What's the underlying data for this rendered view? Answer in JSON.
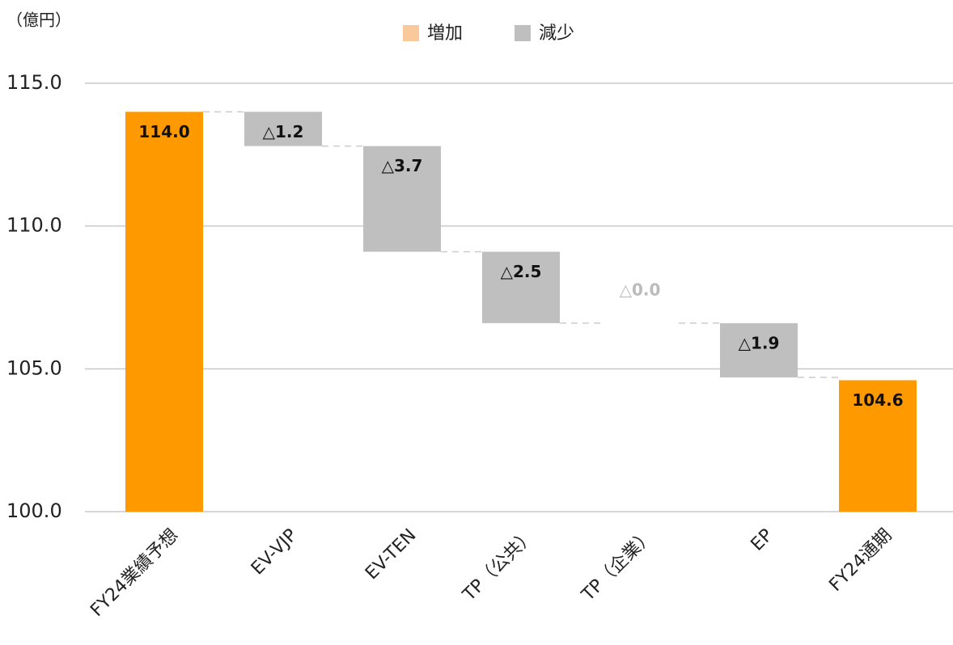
{
  "chart_data": {
    "type": "waterfall",
    "unit_label": "（億円）",
    "categories": [
      "FY24業績予想",
      "EV-VJP",
      "EV-TEN",
      "TP（公共）",
      "TP（企業）",
      "EP",
      "FY24通期"
    ],
    "values": [
      114.0,
      -1.2,
      -3.7,
      -2.5,
      -0.0,
      -1.9,
      104.6
    ],
    "value_labels": [
      "114.0",
      "△1.2",
      "△3.7",
      "△2.5",
      "△0.0",
      "△1.9",
      "104.6"
    ],
    "measure": [
      "absolute",
      "relative",
      "relative",
      "relative",
      "relative",
      "relative",
      "absolute"
    ],
    "total_color": "#ff9900",
    "legend": [
      {
        "name": "増加",
        "color": "#f9c99c"
      },
      {
        "name": "減少",
        "color": "#bfbfbf"
      }
    ],
    "ylim": [
      100,
      115
    ],
    "yticks": [
      {
        "value": 100,
        "label": "100.0"
      },
      {
        "value": 105,
        "label": "105.0"
      },
      {
        "value": 110,
        "label": "110.0"
      },
      {
        "value": 115,
        "label": "115.0"
      }
    ],
    "grid": true
  }
}
